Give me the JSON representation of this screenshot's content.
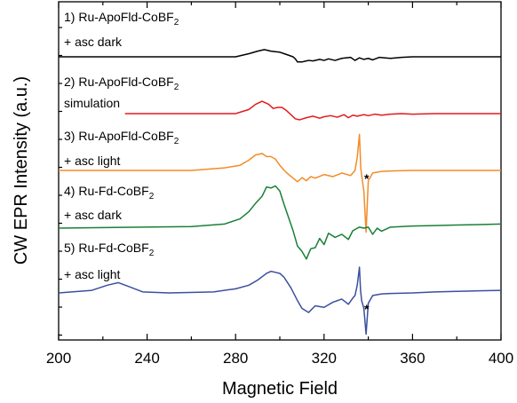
{
  "chart_data": {
    "type": "line",
    "xlabel": "Magnetic Field",
    "ylabel": "CW EPR Intensity (a.u.)",
    "xlim": [
      200,
      400
    ],
    "x_ticks": [
      "200",
      "240",
      "280",
      "320",
      "360",
      "400"
    ],
    "y_ticks_labeled": false,
    "grid": false,
    "legend": "none",
    "artifact_marker": "*",
    "series": [
      {
        "label_main": "1) Ru-ApoFld-CoBF",
        "label_sub": "2",
        "label_line2": "+ asc dark",
        "color": "#000000",
        "x": [
          200,
          280,
          286,
          290,
          293,
          296,
          298,
          300,
          302,
          304,
          306,
          307,
          308,
          310,
          312,
          313,
          315,
          318,
          320,
          322,
          325,
          328,
          330,
          332,
          334,
          336,
          338,
          340,
          342,
          345,
          350,
          355,
          360,
          370,
          380,
          390,
          400
        ],
        "y": [
          0.0,
          0.0,
          0.06,
          0.11,
          0.14,
          0.11,
          0.1,
          0.09,
          0.06,
          0.03,
          0.0,
          -0.04,
          -0.1,
          -0.1,
          -0.08,
          -0.07,
          -0.08,
          -0.05,
          -0.07,
          -0.04,
          -0.07,
          -0.03,
          -0.02,
          -0.01,
          -0.07,
          -0.02,
          -0.05,
          -0.03,
          -0.06,
          -0.01,
          -0.03,
          -0.01,
          0.0,
          0.0,
          0.0,
          0.0,
          0.0
        ]
      },
      {
        "label_main": "2) Ru-ApoFld-CoBF",
        "label_sub": "2",
        "label_line2": "simulation",
        "color": "#e41a1c",
        "x": [
          230,
          280,
          286,
          289,
          292,
          295,
          297,
          299,
          301,
          303,
          305,
          307,
          309,
          312,
          315,
          318,
          320,
          323,
          326,
          329,
          331,
          333,
          335,
          338,
          340,
          343,
          346,
          350,
          355,
          360,
          370,
          380,
          390,
          400
        ],
        "y": [
          0.0,
          0.0,
          0.08,
          0.18,
          0.24,
          0.18,
          0.1,
          0.12,
          0.12,
          0.06,
          -0.02,
          -0.1,
          -0.12,
          -0.08,
          -0.05,
          -0.09,
          -0.06,
          -0.04,
          -0.07,
          -0.02,
          -0.08,
          -0.03,
          -0.05,
          -0.02,
          -0.04,
          -0.01,
          -0.03,
          -0.01,
          0.0,
          -0.01,
          0.0,
          0.0,
          0.0,
          0.0
        ]
      },
      {
        "label_main": "3) Ru-ApoFld-CoBF",
        "label_sub": "2",
        "label_line2": "+ asc light",
        "color": "#f28c28",
        "x": [
          200,
          260,
          275,
          282,
          286,
          289,
          292,
          294,
          296,
          298,
          300,
          302,
          304,
          306,
          308,
          310,
          312,
          314,
          316,
          320,
          324,
          328,
          332,
          334,
          335,
          336,
          336.6,
          337,
          338,
          339,
          340,
          342,
          346,
          350,
          360,
          370,
          380,
          390,
          400
        ],
        "y": [
          0.0,
          0.0,
          0.05,
          0.1,
          0.2,
          0.3,
          0.33,
          0.27,
          0.27,
          0.22,
          0.1,
          0.0,
          -0.08,
          -0.15,
          -0.22,
          -0.14,
          -0.2,
          -0.12,
          -0.15,
          -0.08,
          -0.12,
          -0.05,
          -0.1,
          0.0,
          0.25,
          0.7,
          0.05,
          -0.1,
          -0.4,
          -1.2,
          -0.2,
          -0.05,
          -0.02,
          -0.01,
          0.0,
          0.0,
          0.0,
          0.0,
          0.0
        ]
      },
      {
        "label_main": "4) Ru-Fd-CoBF",
        "label_sub": "2",
        "label_line2": "+ asc dark",
        "color": "#1a7f37",
        "x": [
          200,
          260,
          275,
          282,
          286,
          289,
          292,
          294,
          296,
          298,
          300,
          302,
          304,
          306,
          308,
          310,
          312,
          314,
          316,
          318,
          320,
          322,
          325,
          328,
          331,
          333,
          336,
          338,
          340,
          342,
          344,
          346,
          350,
          360,
          370,
          380,
          390,
          400
        ],
        "y": [
          0.0,
          0.03,
          0.08,
          0.18,
          0.32,
          0.48,
          0.62,
          0.8,
          0.78,
          0.82,
          0.72,
          0.45,
          0.2,
          -0.05,
          -0.35,
          -0.45,
          -0.6,
          -0.4,
          -0.38,
          -0.2,
          -0.32,
          -0.1,
          -0.18,
          -0.12,
          -0.22,
          -0.05,
          0.02,
          0.0,
          0.02,
          -0.12,
          0.0,
          -0.06,
          0.02,
          0.04,
          0.05,
          0.06,
          0.07,
          0.08
        ]
      },
      {
        "label_main": "5) Ru-Fd-CoBF",
        "label_sub": "2",
        "label_line2": "+ asc light",
        "color": "#3b4fa0",
        "x": [
          200,
          215,
          222,
          227,
          232,
          238,
          250,
          270,
          280,
          286,
          290,
          294,
          296,
          298,
          300,
          302,
          305,
          308,
          310,
          313,
          316,
          320,
          324,
          328,
          331,
          333,
          334,
          335,
          336,
          336.5,
          337,
          338,
          339,
          340,
          342,
          346,
          350,
          360,
          370,
          380,
          390,
          400
        ],
        "y": [
          0.0,
          0.05,
          0.15,
          0.2,
          0.12,
          0.02,
          0.0,
          0.02,
          0.08,
          0.15,
          0.25,
          0.38,
          0.42,
          0.4,
          0.38,
          0.3,
          0.1,
          -0.15,
          -0.3,
          -0.38,
          -0.25,
          -0.28,
          -0.18,
          -0.12,
          -0.22,
          -0.1,
          -0.05,
          0.15,
          0.5,
          0.05,
          -0.15,
          -0.3,
          -0.8,
          -0.2,
          -0.05,
          -0.02,
          -0.01,
          0.0,
          0.02,
          0.03,
          0.04,
          0.05
        ]
      }
    ]
  }
}
